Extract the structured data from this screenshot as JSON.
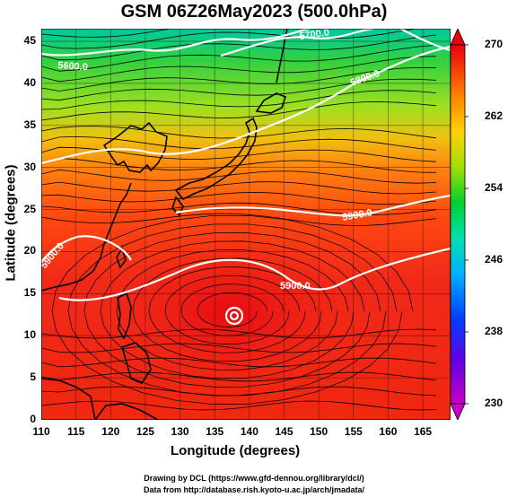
{
  "title": "GSM 06Z26May2023 (500.0hPa)",
  "axes": {
    "xlabel": "Longitude (degrees)",
    "ylabel": "Latitude  (degrees)",
    "x_ticks": [
      "110",
      "115",
      "120",
      "125",
      "130",
      "135",
      "140",
      "145",
      "150",
      "155",
      "160",
      "165"
    ],
    "y_ticks": [
      "0",
      "5",
      "10",
      "15",
      "20",
      "25",
      "30",
      "35",
      "40",
      "45"
    ]
  },
  "colorbar": {
    "ticks": [
      "270",
      "262",
      "254",
      "246",
      "238",
      "230"
    ],
    "colors": [
      "#c800c8",
      "#0000ff",
      "#00a0ff",
      "#00e0c0",
      "#00d000",
      "#c8f000",
      "#ffd000",
      "#ff8000",
      "#ff2000",
      "#d00000"
    ]
  },
  "contours": [
    {
      "label": "5600.0"
    },
    {
      "label": "5700.0"
    },
    {
      "label": "5800.0"
    },
    {
      "label": "5900.0"
    },
    {
      "label": "5900.0"
    },
    {
      "label": "5900.0"
    }
  ],
  "footer": {
    "line1": "Drawing by DCL (https://www.gfd-dennou.org/library/dcl/)",
    "line2": "Data from http://database.rish.kyoto-u.ac.jp/arch/jmadata/"
  },
  "colors": {
    "land_outline": "#000000",
    "contour": "#ffffff",
    "streamline": "#000000"
  }
}
